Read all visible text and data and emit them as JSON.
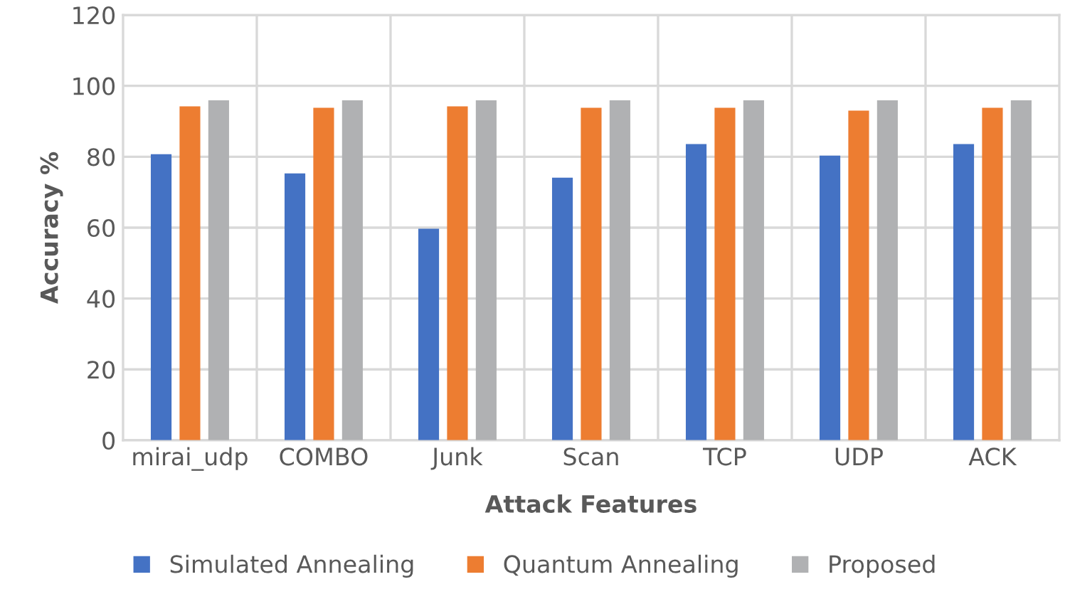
{
  "chart_data": {
    "type": "bar",
    "xlabel": "Attack Features",
    "ylabel": "Accuracy %",
    "categories": [
      "mirai_udp",
      "COMBO",
      "Junk",
      "Scan",
      "TCP",
      "UDP",
      "ACK"
    ],
    "series": [
      {
        "name": "Simulated Annealing",
        "color": "#4472c4",
        "values": [
          80.7,
          75.3,
          59.7,
          74.1,
          83.6,
          80.3,
          83.6
        ]
      },
      {
        "name": "Quantum Annealing",
        "color": "#ed7d31",
        "values": [
          94.2,
          93.8,
          94.2,
          93.8,
          93.8,
          93.0,
          93.8
        ]
      },
      {
        "name": "Proposed",
        "color": "#b0b1b3",
        "values": [
          95.9,
          95.9,
          95.9,
          95.9,
          95.9,
          95.9,
          95.9
        ]
      }
    ],
    "ylim": [
      0,
      120
    ],
    "yticks": [
      0,
      20,
      40,
      60,
      80,
      100,
      120
    ],
    "grid": true,
    "legend": "bottom"
  }
}
